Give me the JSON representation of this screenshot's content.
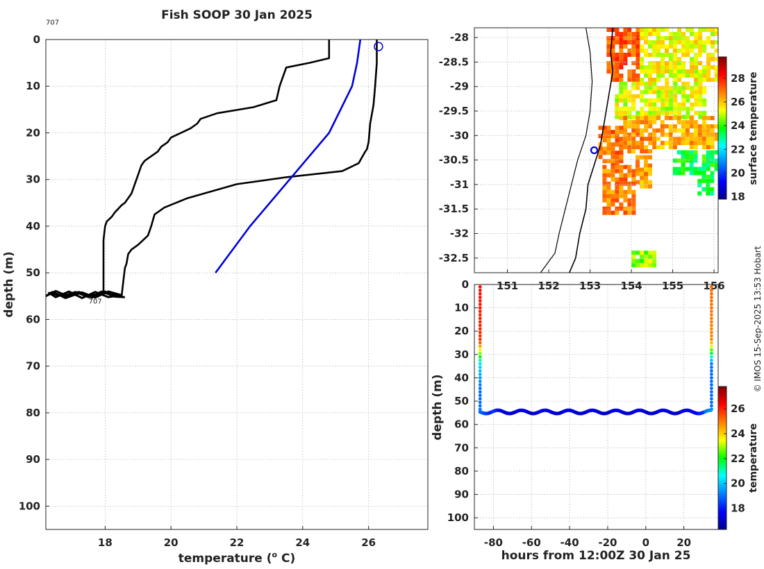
{
  "title": "Fish SOOP 30 Jan 2025",
  "credit": "© IMOS 15-Sep-2025 13:53 Hobart",
  "chart_data": [
    {
      "type": "line",
      "panel": "profile",
      "xlabel": "temperature (",
      "xlabel_sup": "o",
      "xlabel_tail": " C)",
      "ylabel": "depth (m)",
      "xlim": [
        16.2,
        27.8
      ],
      "ylim": [
        105,
        0
      ],
      "yreversed": true,
      "xticks": [
        "18",
        "20",
        "22",
        "24",
        "26"
      ],
      "yticks": [
        "0",
        "10",
        "20",
        "30",
        "40",
        "50",
        "60",
        "70",
        "80",
        "90",
        "100"
      ],
      "annotations": [
        {
          "text": "707",
          "x": 16.2,
          "y": -2
        },
        {
          "text": "707",
          "x": 17.5,
          "y": 56
        }
      ],
      "grid": true,
      "series": [
        {
          "role": "climatology-upper-bound",
          "color": "#000000",
          "x": [
            24.8,
            24.8,
            24.8,
            24.2,
            23.5,
            23.3,
            23.2,
            22.5,
            21.4,
            20.9,
            20.8,
            20.6,
            20.0,
            19.9,
            19.7,
            19.6,
            19.2,
            19.1,
            19.0,
            18.8,
            18.6,
            18.5,
            18.3,
            18.2,
            18.05,
            18.0,
            17.95,
            17.95,
            17.95
          ],
          "y": [
            0,
            2,
            4,
            5,
            6,
            10,
            13,
            14.5,
            15.8,
            17,
            18,
            19,
            21,
            22,
            23,
            24,
            26,
            27,
            29,
            33,
            35,
            35.5,
            37,
            38,
            39,
            40,
            43,
            50,
            54.5
          ]
        },
        {
          "role": "climatology-lower-bound",
          "color": "#000000",
          "x": [
            26.25,
            26.25,
            26.2,
            26.15,
            26.05,
            26.0,
            25.95,
            25.9,
            25.7,
            25.2,
            23.5,
            22.0,
            20.5,
            19.8,
            19.5,
            19.4,
            19.3,
            19.0,
            18.8,
            18.7,
            18.65,
            18.6,
            18.55,
            18.5
          ],
          "y": [
            0,
            5,
            10,
            14,
            18,
            22,
            23.5,
            24,
            26.5,
            28.2,
            29.5,
            31,
            34,
            36,
            37.5,
            40,
            42,
            44,
            45,
            46,
            48,
            49,
            52,
            55
          ]
        },
        {
          "role": "climatology-mean",
          "color": "#0000dd",
          "x": [
            25.75,
            25.65,
            25.5,
            24.8,
            22.4,
            21.35
          ],
          "y": [
            0,
            5,
            10,
            20,
            40,
            50
          ]
        },
        {
          "role": "fish-track",
          "color": "#000000",
          "x": [
            16.4,
            16.8,
            17.2,
            17.6,
            18.0,
            18.4,
            18.0,
            17.6,
            17.2,
            16.8,
            16.4,
            16.2,
            16.5,
            16.9,
            17.3,
            17.7,
            18.1,
            18.5,
            18.1,
            17.7,
            17.3,
            16.9,
            16.5,
            16.3,
            16.7,
            17.1,
            17.5,
            17.9,
            18.3,
            18.6
          ],
          "y": [
            54.2,
            55.2,
            54.1,
            55.0,
            54.3,
            55.1,
            54.0,
            55.3,
            54.4,
            55.4,
            54.1,
            55.0,
            53.9,
            55.1,
            54.2,
            55.3,
            54.0,
            54.8,
            55.2,
            54.1,
            55.4,
            54.0,
            55.2,
            54.3,
            55.0,
            54.1,
            55.2,
            54.0,
            55.1,
            55.2
          ]
        }
      ],
      "marker": {
        "shape": "open-circle",
        "color": "#0000dd",
        "x": 26.3,
        "y": 1.5
      }
    },
    {
      "type": "heatmap",
      "panel": "map",
      "colorbar_label": "surface temperature",
      "colorbar_ticks": [
        "18",
        "20",
        "22",
        "24",
        "26",
        "28"
      ],
      "clim": [
        17.8,
        29.8
      ],
      "xlim": [
        150.2,
        156.1
      ],
      "ylim": [
        -32.8,
        -27.8
      ],
      "xticks": [
        "151",
        "152",
        "153",
        "154",
        "155",
        "156"
      ],
      "yticks": [
        "-28",
        "-28.5",
        "-29",
        "-29.5",
        "-30",
        "-30.5",
        "-31",
        "-31.5",
        "-32",
        "-32.5"
      ],
      "grid": true,
      "coastline": [
        [
          153.55,
          -27.8
        ],
        [
          153.5,
          -28.3
        ],
        [
          153.55,
          -28.7
        ],
        [
          153.45,
          -29.2
        ],
        [
          153.35,
          -29.7
        ],
        [
          153.25,
          -30.2
        ],
        [
          153.1,
          -30.6
        ],
        [
          152.95,
          -31.0
        ],
        [
          152.9,
          -31.5
        ],
        [
          152.75,
          -32.0
        ],
        [
          152.65,
          -32.5
        ],
        [
          152.5,
          -32.8
        ]
      ],
      "shelf_edge": [
        [
          152.9,
          -27.8
        ],
        [
          153.0,
          -28.3
        ],
        [
          153.05,
          -28.9
        ],
        [
          153.0,
          -29.5
        ],
        [
          152.9,
          -30.0
        ],
        [
          152.7,
          -30.5
        ],
        [
          152.55,
          -31.0
        ],
        [
          152.4,
          -31.5
        ],
        [
          152.25,
          -32.0
        ],
        [
          152.15,
          -32.4
        ],
        [
          151.8,
          -32.8
        ]
      ],
      "marker": {
        "shape": "open-circle",
        "color": "#0000dd",
        "lon": 153.1,
        "lat": -30.3
      },
      "sst_regions": [
        {
          "lon": [
            153.4,
            154.2
          ],
          "lat": [
            -28.9,
            -27.8
          ],
          "temp": 27.3
        },
        {
          "lon": [
            154.2,
            156.1
          ],
          "lat": [
            -28.9,
            -27.8
          ],
          "temp": 25.4
        },
        {
          "lon": [
            153.6,
            155.8
          ],
          "lat": [
            -29.6,
            -28.9
          ],
          "temp": 25.2
        },
        {
          "lon": [
            153.7,
            154.6
          ],
          "lat": [
            -30.3,
            -29.6
          ],
          "temp": 26.6
        },
        {
          "lon": [
            154.6,
            156.1
          ],
          "lat": [
            -30.2,
            -29.6
          ],
          "temp": 26.3
        },
        {
          "lon": [
            153.2,
            153.8
          ],
          "lat": [
            -30.6,
            -29.8
          ],
          "temp": 27.0
        },
        {
          "lon": [
            153.3,
            154.1
          ],
          "lat": [
            -31.6,
            -30.6
          ],
          "temp": 26.8
        },
        {
          "lon": [
            154.1,
            154.5
          ],
          "lat": [
            -31.0,
            -30.4
          ],
          "temp": 26.4
        },
        {
          "lon": [
            155.0,
            156.1
          ],
          "lat": [
            -30.8,
            -30.3
          ],
          "temp": 23.6
        },
        {
          "lon": [
            155.6,
            156.0
          ],
          "lat": [
            -31.2,
            -30.8
          ],
          "temp": 23.4
        },
        {
          "lon": [
            154.0,
            154.6
          ],
          "lat": [
            -32.65,
            -32.35
          ],
          "temp": 24.6
        }
      ]
    },
    {
      "type": "scatter",
      "panel": "time-depth",
      "xlabel": "hours from 12:00Z 30 Jan 25",
      "ylabel": "depth (m)",
      "colorbar_label": "temperature",
      "colorbar_ticks": [
        "18",
        "20",
        "22",
        "24",
        "26"
      ],
      "clim": [
        16.3,
        27.8
      ],
      "xlim": [
        -90,
        38
      ],
      "ylim": [
        105,
        0
      ],
      "yreversed": true,
      "xticks": [
        "-80",
        "-60",
        "-40",
        "-20",
        "0",
        "20"
      ],
      "yticks": [
        "0",
        "10",
        "20",
        "30",
        "40",
        "50",
        "60",
        "70",
        "80",
        "90",
        "100"
      ],
      "grid": true,
      "descent": {
        "hour": -87,
        "top_temp": 26.3
      },
      "ascent": {
        "hour": 34.5,
        "top_temp": 25.2
      },
      "bottom_track": {
        "x_start": -87,
        "x_end": 34.5,
        "depth_mean": 54.6,
        "depth_amplitude": 0.7,
        "period_h": 12.4,
        "temp_warm_edge": 19.0,
        "temp_deep": 17.0
      }
    }
  ]
}
